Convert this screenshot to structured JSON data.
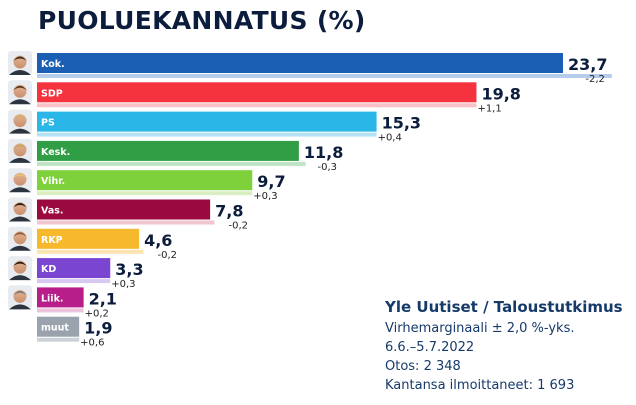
{
  "chart_data": {
    "type": "bar",
    "orientation": "horizontal",
    "title": "PUOLUEKANNATUS (%)",
    "categories": [
      "Kok.",
      "SDP",
      "PS",
      "Kesk.",
      "Vihr.",
      "Vas.",
      "RKP",
      "KD",
      "Liik.",
      "muut"
    ],
    "values": [
      23.7,
      19.8,
      15.3,
      11.8,
      9.7,
      7.8,
      4.6,
      3.3,
      2.1,
      1.9
    ],
    "value_labels": [
      "23,7",
      "19,8",
      "15,3",
      "11,8",
      "9,7",
      "7,8",
      "4,6",
      "3,3",
      "2,1",
      "1,9"
    ],
    "change": [
      -2.2,
      1.1,
      0.4,
      -0.3,
      0.3,
      -0.2,
      -0.2,
      0.3,
      0.2,
      0.6
    ],
    "change_labels": [
      "-2,2",
      "+1,1",
      "+0,4",
      "-0,3",
      "+0,3",
      "-0,2",
      "-0,2",
      "+0,3",
      "+0,2",
      "+0,6"
    ],
    "colors": [
      "#1a5fb4",
      "#f5333f",
      "#2bb6e8",
      "#2f9e44",
      "#7ed13a",
      "#9a0a3f",
      "#f6b82c",
      "#7a45d1",
      "#b81e8a",
      "#9aa3ad"
    ],
    "change_bar_colors": [
      "#b5cdea",
      "#f8c2c8",
      "#b5e3f4",
      "#bfe3c4",
      "#d9efc2",
      "#f0c6cf",
      "#fce4b0",
      "#d6c8f0",
      "#ecc3dd",
      "#cdd2d8"
    ],
    "xlim": [
      0,
      25
    ],
    "grid": false,
    "legend": "none"
  },
  "source": {
    "title": "Yle Uutiset / Taloustutkimus",
    "lines": [
      "Virhemarginaali ± 2,0 %-yks.",
      "6.6.–5.7.2022",
      "Otos: 2 348",
      "Kantansa ilmoittaneet: 1 693"
    ]
  }
}
